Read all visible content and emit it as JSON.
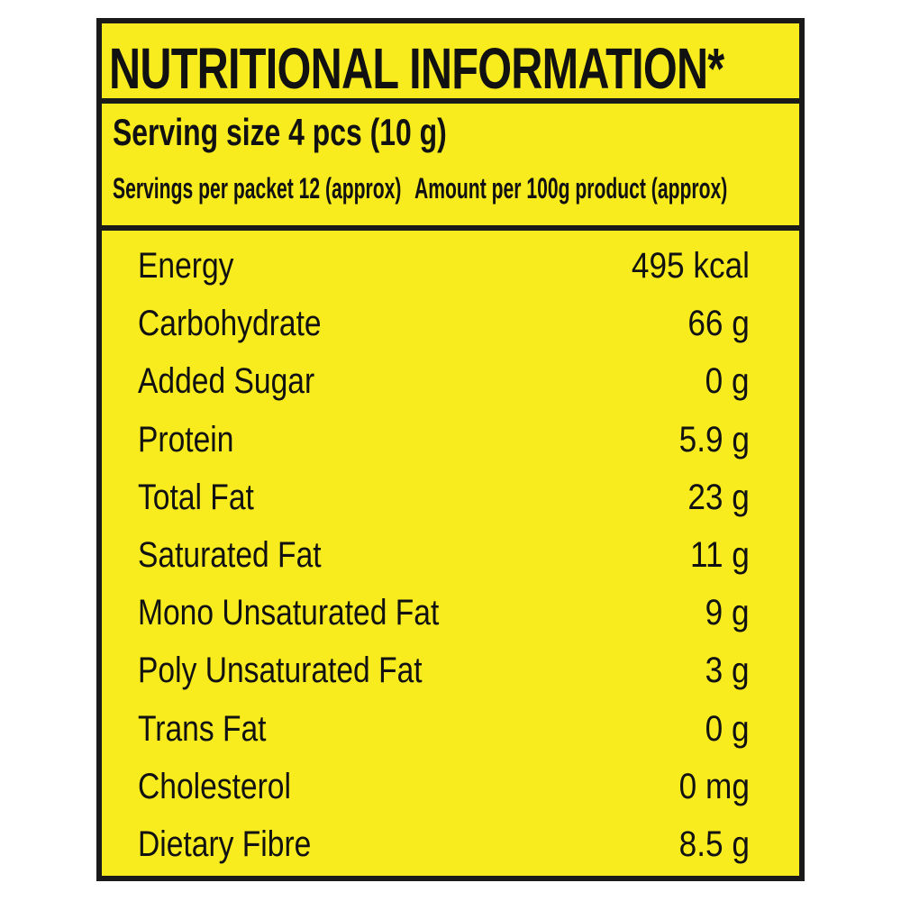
{
  "title": "NUTRITIONAL INFORMATION*",
  "serving_size": "Serving size 4 pcs (10 g)",
  "servings_per_packet": "Servings per packet 12 (approx)",
  "amount_basis": "Amount per 100g product (approx)",
  "colors": {
    "background": "#f8ec1f",
    "border": "#1a1a1a"
  },
  "nutrients": [
    {
      "name": "Energy",
      "value": "495 kcal"
    },
    {
      "name": "Carbohydrate",
      "value": "66 g"
    },
    {
      "name": "Added Sugar",
      "value": "0 g"
    },
    {
      "name": "Protein",
      "value": "5.9 g"
    },
    {
      "name": "Total Fat",
      "value": "23 g"
    },
    {
      "name": "Saturated Fat",
      "value": "11 g"
    },
    {
      "name": "Mono Unsaturated Fat",
      "value": "9 g"
    },
    {
      "name": "Poly Unsaturated Fat",
      "value": "3 g"
    },
    {
      "name": "Trans Fat",
      "value": "0 g"
    },
    {
      "name": "Cholesterol",
      "value": "0 mg"
    },
    {
      "name": "Dietary Fibre",
      "value": "8.5 g"
    }
  ]
}
